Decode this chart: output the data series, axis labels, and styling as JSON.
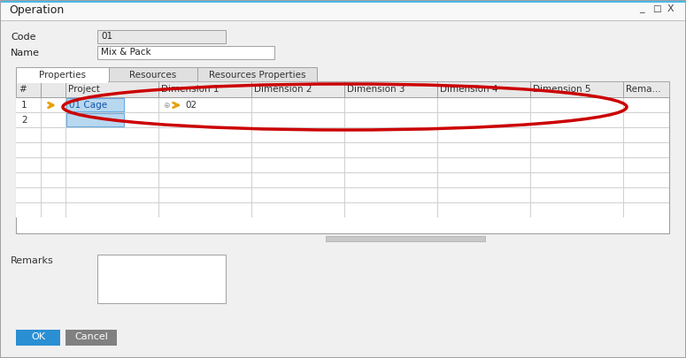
{
  "title": "Operation",
  "title_bar_top_color": "#4db8e8",
  "title_bar_color": "#5aabcf",
  "bg_color": "#f0f0f0",
  "dialog_bg": "#f5f5f5",
  "code_label": "Code",
  "code_value": "01",
  "name_label": "Name",
  "name_value": "Mix & Pack",
  "tabs": [
    "Properties",
    "Resources",
    "Resources Properties"
  ],
  "col_headers": [
    "#",
    "",
    "Project",
    "Dimension 1",
    "Dimension 2",
    "Dimension 3",
    "Dimension 4",
    "Dimension 5",
    "Rema..."
  ],
  "row1_project": "01 Cage",
  "row1_dim1": "02",
  "remarks_label": "Remarks",
  "ok_btn": "OK",
  "cancel_btn": "Cancel",
  "ok_color": "#2b8fd4",
  "cancel_color": "#808080",
  "red_oval_color": "#cc0000",
  "grid_line_color": "#d0d0d0",
  "header_bg": "#e8e8e8",
  "cell_bg": "#ffffff",
  "selected_cell_bg": "#b8d8f0",
  "tab_active_bg": "#ffffff",
  "tab_inactive_bg": "#e0e0e0",
  "scrollbar_color": "#c8c8c8",
  "border_color": "#a0a0a0",
  "separator_color": "#c0c0c0"
}
